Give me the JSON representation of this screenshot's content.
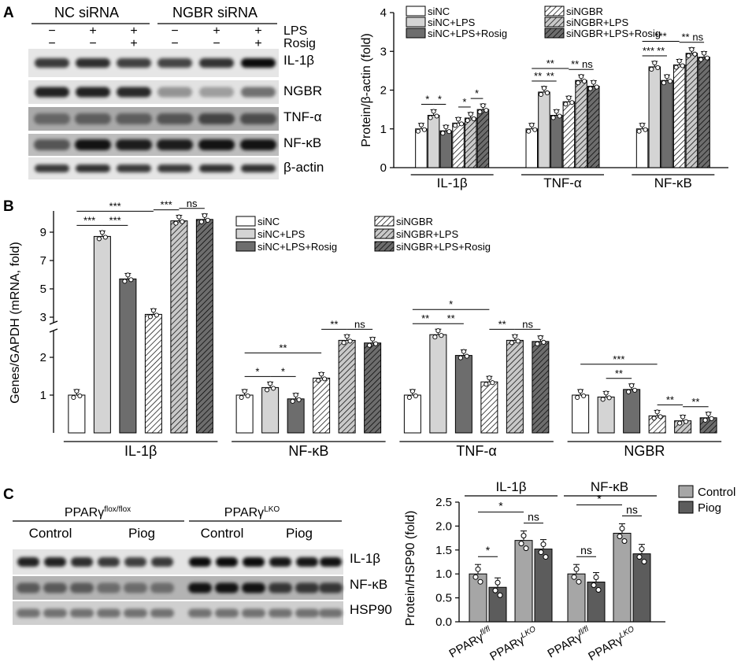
{
  "panel_labels": [
    "A",
    "B",
    "C"
  ],
  "panel_a": {
    "groups": [
      "NC siRNA",
      "NGBR siRNA"
    ],
    "treatment_rows": [
      {
        "name": "LPS",
        "signs": [
          "−",
          "+",
          "+",
          "−",
          "+",
          "+"
        ]
      },
      {
        "name": "Rosig",
        "signs": [
          "−",
          "−",
          "+",
          "−",
          "−",
          "+"
        ]
      }
    ],
    "blot_rows": [
      "IL-1β",
      "NGBR",
      "TNF-α",
      "NF-κB",
      "β-actin"
    ]
  },
  "panel_c": {
    "headers": [
      "PPARγ",
      "PPARγ"
    ],
    "header_sup": [
      "flox/flox",
      "LKO"
    ],
    "subheaders": [
      "Control",
      "Piog",
      "Control",
      "Piog"
    ],
    "blot_rows": [
      "IL-1β",
      "NF-κB",
      "HSP90"
    ]
  },
  "chart_data": [
    {
      "id": "A_right",
      "type": "bar",
      "ylabel": "Protein/β-actin (fold)",
      "ylim": [
        0,
        4
      ],
      "yticks": [
        0,
        1,
        2,
        3,
        4
      ],
      "categories": [
        "IL-1β",
        "TNF-α",
        "NF-κB"
      ],
      "series": [
        {
          "name": "siNC",
          "values": [
            1.0,
            1.0,
            1.0
          ]
        },
        {
          "name": "siNC+LPS",
          "values": [
            1.35,
            1.95,
            2.6
          ]
        },
        {
          "name": "siNC+LPS+Rosig",
          "values": [
            0.95,
            1.35,
            2.25
          ]
        },
        {
          "name": "siNGBR",
          "values": [
            1.15,
            1.7,
            2.65
          ]
        },
        {
          "name": "siNGBR+LPS",
          "values": [
            1.28,
            2.25,
            2.95
          ]
        },
        {
          "name": "siNGBR+LPS+Rosig",
          "values": [
            1.5,
            2.1,
            2.85
          ]
        }
      ],
      "legend_position": "top",
      "significance": [
        {
          "group": 0,
          "from": 0,
          "to": 1,
          "label": "*"
        },
        {
          "group": 0,
          "from": 1,
          "to": 2,
          "label": "*"
        },
        {
          "group": 0,
          "from": 3,
          "to": 4,
          "label": "*"
        },
        {
          "group": 0,
          "from": 4,
          "to": 5,
          "label": "*"
        },
        {
          "group": 1,
          "from": 0,
          "to": 1,
          "label": "**"
        },
        {
          "group": 1,
          "from": 1,
          "to": 2,
          "label": "**"
        },
        {
          "group": 1,
          "from": 0,
          "to": 3,
          "label": "**"
        },
        {
          "group": 1,
          "from": 3,
          "to": 4,
          "label": "**"
        },
        {
          "group": 1,
          "from": 4,
          "to": 5,
          "label": "ns"
        },
        {
          "group": 2,
          "from": 0,
          "to": 1,
          "label": "***"
        },
        {
          "group": 2,
          "from": 1,
          "to": 2,
          "label": "**"
        },
        {
          "group": 2,
          "from": 0,
          "to": 3,
          "label": "***"
        },
        {
          "group": 2,
          "from": 3,
          "to": 4,
          "label": "**"
        },
        {
          "group": 2,
          "from": 4,
          "to": 5,
          "label": "ns"
        }
      ]
    },
    {
      "id": "B",
      "type": "bar",
      "ylabel": "Genes/GAPDH (mRNA, fold)",
      "axis_break": true,
      "yticks_lower": [
        1,
        2
      ],
      "yticks_upper": [
        3,
        5,
        7,
        9
      ],
      "categories": [
        "IL-1β",
        "NF-κB",
        "TNF-α",
        "NGBR"
      ],
      "series": [
        {
          "name": "siNC",
          "values": [
            1.0,
            1.0,
            1.0,
            1.0
          ]
        },
        {
          "name": "siNC+LPS",
          "values": [
            8.7,
            1.2,
            2.6,
            0.95
          ]
        },
        {
          "name": "siNC+LPS+Rosig",
          "values": [
            5.7,
            0.9,
            2.05,
            1.15
          ]
        },
        {
          "name": "siNGBR",
          "values": [
            3.2,
            1.45,
            1.35,
            0.45
          ]
        },
        {
          "name": "siNGBR+LPS",
          "values": [
            9.8,
            2.45,
            2.45,
            0.32
          ]
        },
        {
          "name": "siNGBR+LPS+Rosig",
          "values": [
            9.9,
            2.38,
            2.42,
            0.4
          ]
        }
      ],
      "legend_position": "top-right",
      "significance": [
        {
          "group": 0,
          "from": 0,
          "to": 1,
          "label": "***"
        },
        {
          "group": 0,
          "from": 1,
          "to": 2,
          "label": "***"
        },
        {
          "group": 0,
          "from": 0,
          "to": 3,
          "label": "***"
        },
        {
          "group": 0,
          "from": 3,
          "to": 4,
          "label": "***"
        },
        {
          "group": 0,
          "from": 4,
          "to": 5,
          "label": "ns"
        },
        {
          "group": 1,
          "from": 0,
          "to": 1,
          "label": "*"
        },
        {
          "group": 1,
          "from": 1,
          "to": 2,
          "label": "*"
        },
        {
          "group": 1,
          "from": 0,
          "to": 3,
          "label": "**"
        },
        {
          "group": 1,
          "from": 3,
          "to": 4,
          "label": "**"
        },
        {
          "group": 1,
          "from": 4,
          "to": 5,
          "label": "ns"
        },
        {
          "group": 2,
          "from": 0,
          "to": 1,
          "label": "**"
        },
        {
          "group": 2,
          "from": 1,
          "to": 2,
          "label": "**"
        },
        {
          "group": 2,
          "from": 0,
          "to": 3,
          "label": "*"
        },
        {
          "group": 2,
          "from": 3,
          "to": 4,
          "label": "**"
        },
        {
          "group": 2,
          "from": 4,
          "to": 5,
          "label": "ns"
        },
        {
          "group": 3,
          "from": 1,
          "to": 2,
          "label": "**"
        },
        {
          "group": 3,
          "from": 0,
          "to": 3,
          "label": "***"
        },
        {
          "group": 3,
          "from": 3,
          "to": 4,
          "label": "**"
        },
        {
          "group": 3,
          "from": 4,
          "to": 5,
          "label": "**"
        }
      ]
    },
    {
      "id": "C_right",
      "type": "bar",
      "ylabel": "Protein/HSP90 (fold)",
      "ylim": [
        0,
        2.5
      ],
      "yticks": [
        0.0,
        0.5,
        1.0,
        1.5,
        2.0,
        2.5
      ],
      "panel_titles": [
        "IL-1β",
        "NF-κB"
      ],
      "categories": [
        "PPARγ",
        "PPARγ",
        "PPARγ",
        "PPARγ"
      ],
      "category_sup": [
        "fl/fl",
        "LKO",
        "fl/fl",
        "LKO"
      ],
      "series": [
        {
          "name": "Control",
          "values": [
            1.0,
            1.7,
            1.0,
            1.85
          ]
        },
        {
          "name": "Piog",
          "values": [
            0.72,
            1.52,
            0.83,
            1.42
          ]
        }
      ],
      "legend_position": "top-right",
      "significance": [
        {
          "pair": 0,
          "label": "*"
        },
        {
          "pair": 1,
          "label": "ns"
        },
        {
          "pair": 2,
          "label": "ns"
        },
        {
          "pair": 3,
          "label": "ns"
        },
        {
          "across": [
            0,
            1
          ],
          "label": "*"
        },
        {
          "across": [
            2,
            3
          ],
          "label": "*"
        }
      ]
    }
  ]
}
